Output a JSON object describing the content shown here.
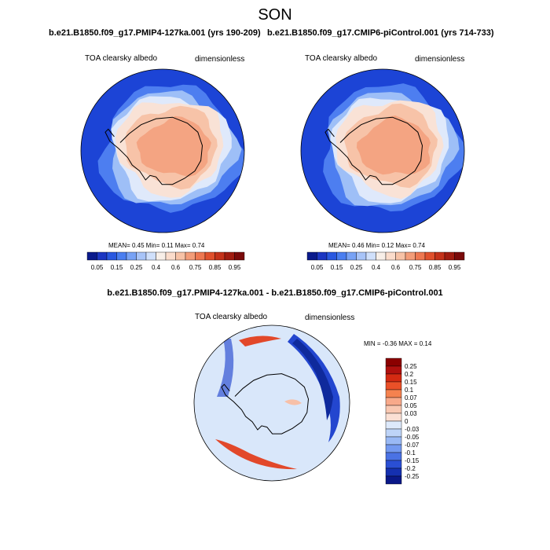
{
  "figure": {
    "title": "SON"
  },
  "panels": [
    {
      "title": "b.e21.B1850.f09_g17.PMIP4-127ka.001 (yrs 190-209)",
      "variable": "TOA clearsky albedo",
      "units": "dimensionless",
      "stats": "MEAN=  0.45  Min=  0.11  Max=  0.74"
    },
    {
      "title": "b.e21.B1850.f09_g17.CMIP6-piControl.001 (yrs 714-733)",
      "variable": "TOA clearsky albedo",
      "units": "dimensionless",
      "stats": "MEAN=  0.46  Min=  0.12  Max=  0.74"
    },
    {
      "title": "b.e21.B1850.f09_g17.PMIP4-127ka.001 - b.e21.B1850.f09_g17.CMIP6-piControl.001",
      "variable": "TOA clearsky albedo",
      "units": "dimensionless",
      "stats": "MIN = -0.36 MAX =  0.14"
    }
  ],
  "colorbar_top": {
    "orientation": "horizontal",
    "labels": [
      "0.05",
      "0.15",
      "0.25",
      "0.4",
      "0.6",
      "0.75",
      "0.85",
      "0.95"
    ],
    "colors": [
      "#0a1a8c",
      "#1c36c2",
      "#2a58e0",
      "#4a7ef0",
      "#78a2f5",
      "#a8c4f8",
      "#d0e0fb",
      "#f8efe8",
      "#fbdccb",
      "#f7c2a6",
      "#f39c78",
      "#ee7750",
      "#e0502c",
      "#c4321a",
      "#a01c10",
      "#7a0a0a"
    ]
  },
  "colorbar_diff": {
    "orientation": "vertical",
    "labels": [
      "0.25",
      "0.2",
      "0.15",
      "0.1",
      "0.07",
      "0.05",
      "0.03",
      "0",
      "-0.03",
      "-0.05",
      "-0.07",
      "-0.1",
      "-0.15",
      "-0.2",
      "-0.25"
    ],
    "colors": [
      "#8b0000",
      "#b0100e",
      "#d42a12",
      "#ea5028",
      "#f5824f",
      "#f8a98a",
      "#f9c8b2",
      "#fbe0d4",
      "#dde9fb",
      "#bed4f8",
      "#99b9f5",
      "#7399f0",
      "#4a72e4",
      "#2a4fd4",
      "#1530b0",
      "#0a1888"
    ]
  },
  "map_colors": {
    "ocean_low": "#1c44d6",
    "ocean_mid": "#4d7ef0",
    "ocean_light": "#9ebff7",
    "sea_ice_edge": "#dfe9fb",
    "ice_pale": "#f9e2d6",
    "ice_mid": "#f7c3a8",
    "ice_core": "#f4a482",
    "diff_bg": "#d9e7fa",
    "diff_neg": "#2346cf",
    "diff_pos": "#e2482a",
    "diff_pos_light": "#f7c0a8"
  }
}
